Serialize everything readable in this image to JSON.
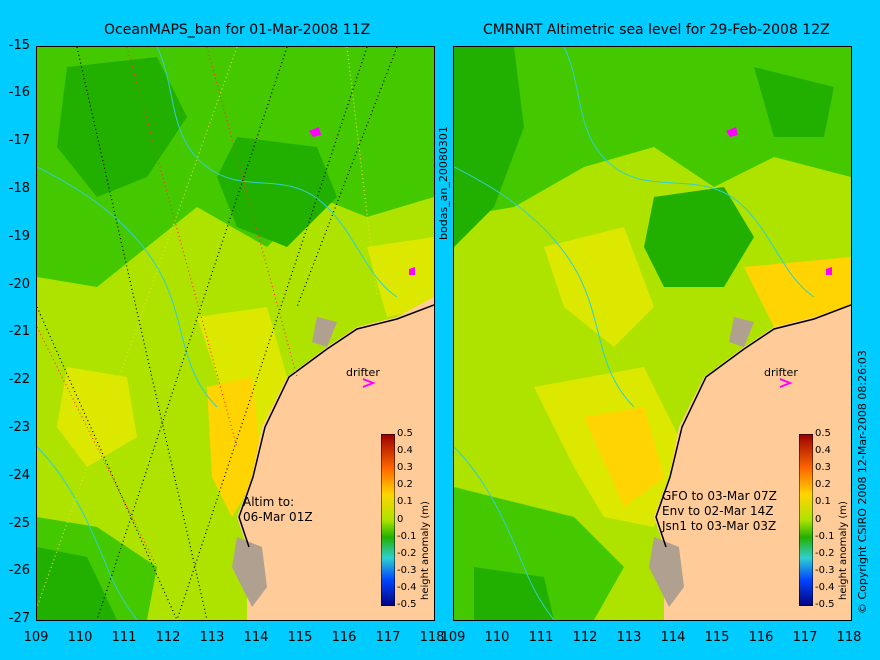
{
  "left_panel": {
    "title": "OceanMAPS_ban for 01-Mar-2008 11Z",
    "annotation_lines": [
      "Altim to:",
      "06-Mar 01Z"
    ],
    "drifter_label": "drifter"
  },
  "right_panel": {
    "title": "CMRNRT Altimetric sea level  for 29-Feb-2008 12Z",
    "annotation_lines": [
      "GFO to 03-Mar 07Z",
      "Env to 02-Mar 14Z",
      "Jsn1 to 03-Mar 03Z"
    ],
    "drifter_label": "drifter"
  },
  "side_text": {
    "left_vertical": "bodas_an_20080301",
    "right_vertical": "© Copyright CSIRO 2008  12-Mar-2008 08:26:03"
  },
  "axes": {
    "y_labels": [
      "-15",
      "-16",
      "-17",
      "-18",
      "-19",
      "-20",
      "-21",
      "-22",
      "-23",
      "-24",
      "-25",
      "-26",
      "-27"
    ],
    "x_labels": [
      "109",
      "110",
      "111",
      "112",
      "113",
      "114",
      "115",
      "116",
      "117",
      "118"
    ]
  },
  "colorbar": {
    "label": "height anomaly (m)",
    "ticks": [
      "0.5",
      "0.4",
      "0.3",
      "0.2",
      "0.1",
      "0",
      "-0.1",
      "-0.2",
      "-0.3",
      "-0.4",
      "-0.5"
    ]
  },
  "colors": {
    "background": "#00ccff",
    "land": "#ffcc99",
    "islands": "#b0a090",
    "drifter": "#ff00ff"
  }
}
